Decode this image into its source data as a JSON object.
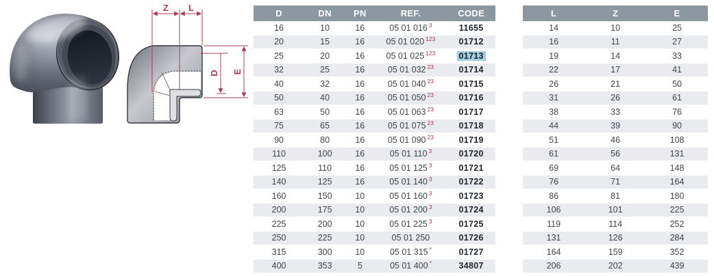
{
  "product": {
    "photo_alt": "90-degree PVC elbow fitting",
    "diagram": {
      "labels": {
        "z": "Z",
        "l": "L",
        "d": "D",
        "e": "E"
      }
    }
  },
  "main_table": {
    "headers": [
      "D",
      "DN",
      "PN",
      "REF.",
      "CODE"
    ],
    "rows": [
      {
        "d": "16",
        "dn": "10",
        "pn": "16",
        "ref": "05 01 016",
        "sup": "3",
        "code": "11655",
        "highlighted": false
      },
      {
        "d": "20",
        "dn": "15",
        "pn": "16",
        "ref": "05 01 020",
        "sup": "123",
        "code": "01712",
        "highlighted": false
      },
      {
        "d": "25",
        "dn": "20",
        "pn": "16",
        "ref": "05 01 025",
        "sup": "123",
        "code": "01713",
        "highlighted": true
      },
      {
        "d": "32",
        "dn": "25",
        "pn": "16",
        "ref": "05 01 032",
        "sup": "23",
        "code": "01714",
        "highlighted": false
      },
      {
        "d": "40",
        "dn": "32",
        "pn": "16",
        "ref": "05 01 040",
        "sup": "23",
        "code": "01715",
        "highlighted": false
      },
      {
        "d": "50",
        "dn": "40",
        "pn": "16",
        "ref": "05 01 050",
        "sup": "23",
        "code": "01716",
        "highlighted": false
      },
      {
        "d": "63",
        "dn": "50",
        "pn": "16",
        "ref": "05 01 063",
        "sup": "23",
        "code": "01717",
        "highlighted": false
      },
      {
        "d": "75",
        "dn": "65",
        "pn": "16",
        "ref": "05 01 075",
        "sup": "23",
        "code": "01718",
        "highlighted": false
      },
      {
        "d": "90",
        "dn": "80",
        "pn": "16",
        "ref": "05 01 090",
        "sup": "23",
        "code": "01719",
        "highlighted": false
      },
      {
        "d": "110",
        "dn": "100",
        "pn": "16",
        "ref": "05 01 110",
        "sup": "3",
        "code": "01720",
        "highlighted": false
      },
      {
        "d": "125",
        "dn": "110",
        "pn": "16",
        "ref": "05 01 125",
        "sup": "3",
        "code": "01721",
        "highlighted": false
      },
      {
        "d": "140",
        "dn": "125",
        "pn": "16",
        "ref": "05 01 140",
        "sup": "3",
        "code": "01722",
        "highlighted": false
      },
      {
        "d": "160",
        "dn": "150",
        "pn": "10",
        "ref": "05 01 160",
        "sup": "3",
        "code": "01723",
        "highlighted": false
      },
      {
        "d": "200",
        "dn": "175",
        "pn": "10",
        "ref": "05 01 200",
        "sup": "3",
        "code": "01724",
        "highlighted": false
      },
      {
        "d": "225",
        "dn": "200",
        "pn": "10",
        "ref": "05 01 225",
        "sup": "3",
        "code": "01725",
        "highlighted": false
      },
      {
        "d": "250",
        "dn": "225",
        "pn": "10",
        "ref": "05 01 250",
        "sup": "",
        "code": "01726",
        "highlighted": false
      },
      {
        "d": "315",
        "dn": "300",
        "pn": "10",
        "ref": "05 01 315",
        "sup": "*",
        "code": "01727",
        "highlighted": false
      },
      {
        "d": "400",
        "dn": "353",
        "pn": "5",
        "ref": "05 01 400",
        "sup": "*",
        "code": "34807",
        "highlighted": false
      }
    ]
  },
  "dims_table": {
    "headers": [
      "L",
      "Z",
      "E"
    ],
    "rows": [
      {
        "l": "14",
        "z": "10",
        "e": "25"
      },
      {
        "l": "16",
        "z": "11",
        "e": "27"
      },
      {
        "l": "19",
        "z": "14",
        "e": "33"
      },
      {
        "l": "22",
        "z": "17",
        "e": "41"
      },
      {
        "l": "26",
        "z": "21",
        "e": "50"
      },
      {
        "l": "31",
        "z": "26",
        "e": "61"
      },
      {
        "l": "38",
        "z": "33",
        "e": "76"
      },
      {
        "l": "44",
        "z": "39",
        "e": "90"
      },
      {
        "l": "51",
        "z": "46",
        "e": "108"
      },
      {
        "l": "61",
        "z": "56",
        "e": "131"
      },
      {
        "l": "69",
        "z": "64",
        "e": "148"
      },
      {
        "l": "76",
        "z": "71",
        "e": "164"
      },
      {
        "l": "86",
        "z": "81",
        "e": "180"
      },
      {
        "l": "106",
        "z": "101",
        "e": "225"
      },
      {
        "l": "119",
        "z": "114",
        "e": "252"
      },
      {
        "l": "131",
        "z": "126",
        "e": "284"
      },
      {
        "l": "164",
        "z": "159",
        "e": "352"
      },
      {
        "l": "206",
        "z": "202",
        "e": "439"
      }
    ]
  },
  "colors": {
    "table_header_bg": "#8d97a0",
    "row_alt_bg": "#e9ebee",
    "footnote_red": "#a5374e",
    "dimension_red": "#a63d55",
    "code_highlight_bg": "#a3cde2"
  }
}
